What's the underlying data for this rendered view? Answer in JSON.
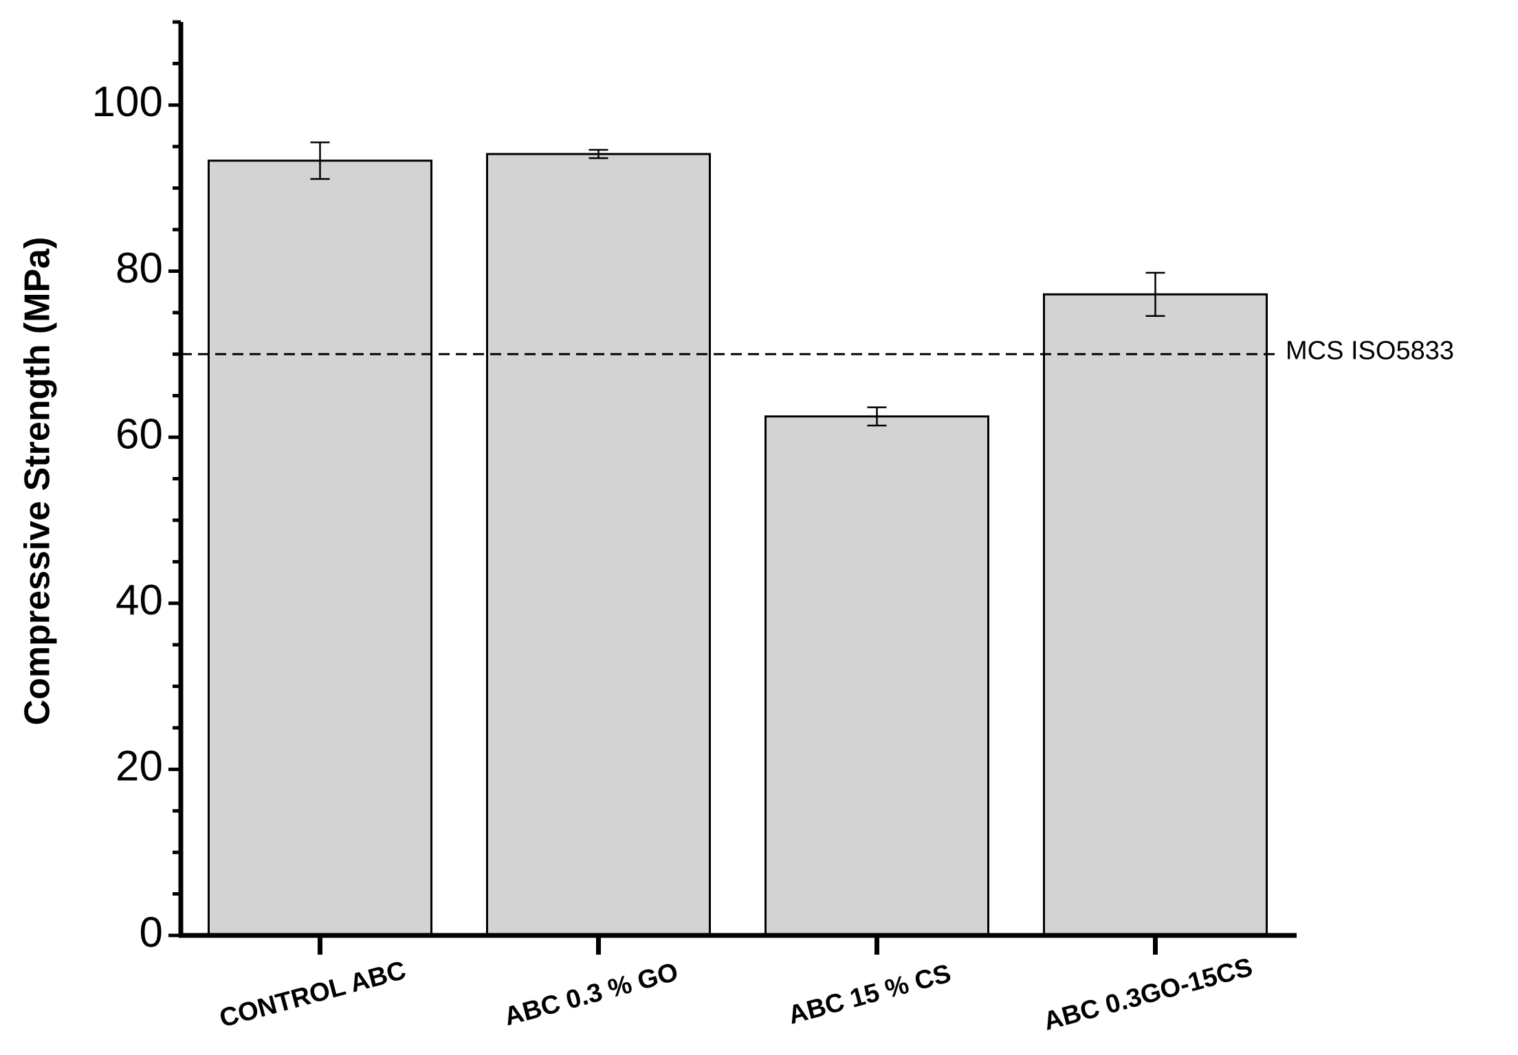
{
  "chart_data": {
    "type": "bar",
    "ylabel": "Compressive Strength (MPa)",
    "categories": [
      "CONTROL  ABC",
      "ABC 0.3 % GO",
      "ABC 15 % CS",
      "ABC 0.3GO-15CS"
    ],
    "values": [
      93.3,
      94.1,
      62.5,
      77.2
    ],
    "errors": [
      2.2,
      0.5,
      1.1,
      2.6
    ],
    "color": "#d3d3d3",
    "ylim": [
      0,
      110
    ],
    "yticks": [
      0,
      20,
      40,
      60,
      80,
      100
    ],
    "yminorticks": [
      5,
      10,
      15,
      25,
      30,
      35,
      45,
      50,
      55,
      65,
      70,
      75,
      85,
      90,
      95,
      105,
      110
    ],
    "reference_line": {
      "value": 70,
      "label": "MCS ISO5833"
    }
  }
}
